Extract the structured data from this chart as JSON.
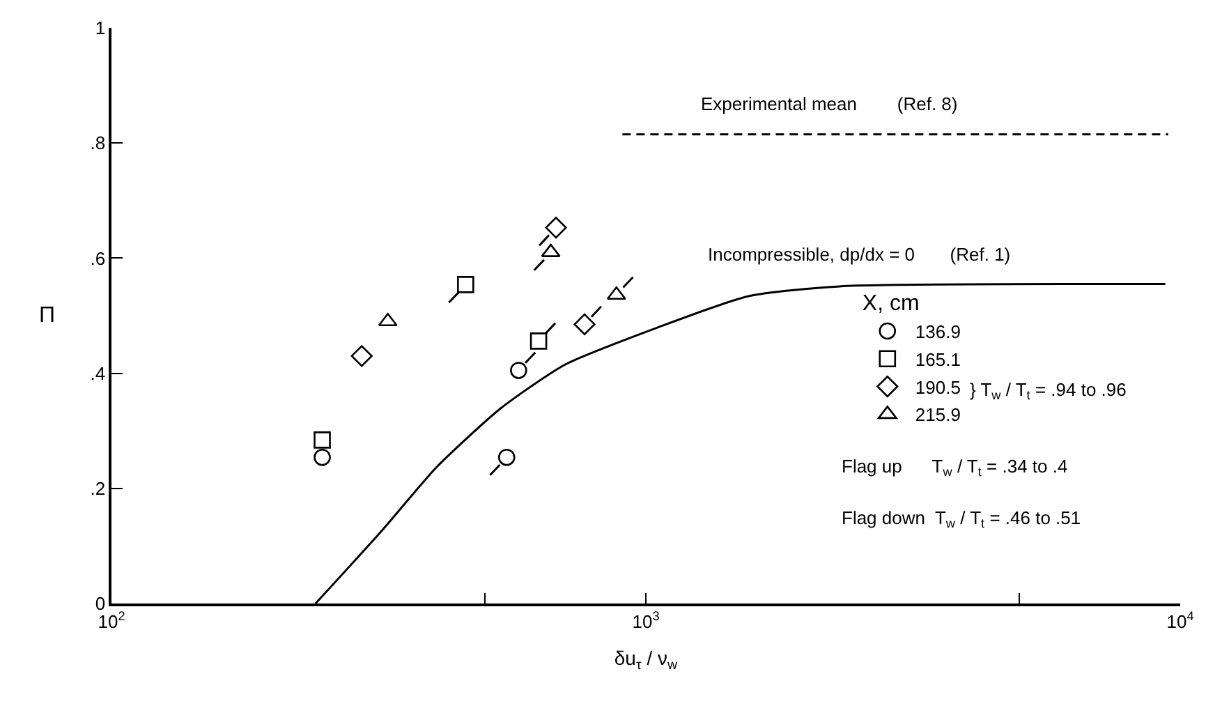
{
  "chart_data": {
    "type": "scatter",
    "xlabel": "δu$_{τ}$ / ν$_{w}$",
    "ylabel": "Π",
    "log": "x",
    "legend": "right",
    "legend_title": "X, cm",
    "xlim": [
      100,
      10000
    ],
    "xticks": [
      {
        "value": 100,
        "label": "10$^{2}$"
      },
      {
        "value": 500,
        "label": null
      },
      {
        "value": 1000,
        "label": "10$^{3}$"
      },
      {
        "value": 5000,
        "label": null
      },
      {
        "value": 10000,
        "label": "10$^{4}$"
      }
    ],
    "ylim": [
      0,
      1
    ],
    "yticks": [
      0,
      {
        "value": 0.2,
        "label": ".2"
      },
      {
        "value": 0.4,
        "label": ".4"
      },
      {
        "value": 0.6,
        "label": ".6"
      },
      {
        "value": 0.8,
        "label": ".8"
      },
      1
    ],
    "series": [
      {
        "name": "136.9",
        "color": "#000000",
        "marker": "circle",
        "x": [
          248,
          578,
          549
        ],
        "values": [
          0.254,
          0.405,
          0.254
        ]
      },
      {
        "name": "165.1",
        "color": "#000000",
        "marker": "square",
        "x": [
          248,
          460,
          630
        ],
        "values": [
          0.284,
          0.554,
          0.456
        ]
      },
      {
        "name": "190.5",
        "color": "#000000",
        "marker": "diamond",
        "x": [
          294,
          679,
          768
        ],
        "values": [
          0.43,
          0.653,
          0.485
        ]
      },
      {
        "name": "215.9",
        "color": "#000000",
        "marker": "triangle",
        "x": [
          329,
          664,
          881
        ],
        "values": [
          0.49,
          0.61,
          0.536
        ]
      },
      {
        "type": "line",
        "color": "#000000",
        "line_style": "solid",
        "x": [
          241,
          321,
          406,
          535,
          706,
          1049,
          1556,
          2307,
          9380
        ],
        "values": [
          0,
          0.127,
          0.237,
          0.339,
          0.415,
          0.479,
          0.534,
          0.551,
          0.555
        ]
      },
      {
        "type": "line",
        "color": "#000000",
        "line_style": "dashed",
        "x": [
          904,
          9500
        ],
        "values": [
          0.815,
          0.815
        ]
      },
      {
        "type": "line",
        "color": "#000000",
        "line_style": "solid",
        "x": [
          595,
          621
        ],
        "values": [
          0.418,
          0.436
        ]
      },
      {
        "type": "line",
        "color": "#000000",
        "line_style": "solid",
        "x": [
          649,
          677
        ],
        "values": [
          0.469,
          0.487
        ]
      },
      {
        "type": "line",
        "color": "#000000",
        "line_style": "solid",
        "x": [
          791,
          825
        ],
        "values": [
          0.498,
          0.516
        ]
      },
      {
        "type": "line",
        "color": "#000000",
        "line_style": "solid",
        "x": [
          907,
          946
        ],
        "values": [
          0.549,
          0.567
        ]
      },
      {
        "type": "line",
        "color": "#000000",
        "line_style": "solid",
        "x": [
          533,
          511
        ],
        "values": [
          0.241,
          0.223
        ]
      },
      {
        "type": "line",
        "color": "#000000",
        "line_style": "solid",
        "x": [
          447,
          428
        ],
        "values": [
          0.541,
          0.523
        ]
      },
      {
        "type": "line",
        "color": "#000000",
        "line_style": "solid",
        "x": [
          659,
          632
        ],
        "values": [
          0.64,
          0.622
        ]
      },
      {
        "type": "line",
        "color": "#000000",
        "line_style": "solid",
        "x": [
          645,
          618
        ],
        "values": [
          0.597,
          0.579
        ]
      }
    ],
    "annotations": [
      {
        "text": "Experimental mean        (Ref. 8)",
        "x": 2200,
        "y": 0.815
      },
      {
        "text": "Incompressible, dp/dx = 0       (Ref. 1)",
        "x": 2500,
        "y": 0.555
      },
      "} T$_{w}$ / T$_{t}$ = .94 to .96",
      "Flag up      T$_{w}$ / T$_{t}$ = .34 to .4",
      "Flag down  T$_{w}$ / T$_{t}$ = .46 to .51"
    ]
  }
}
